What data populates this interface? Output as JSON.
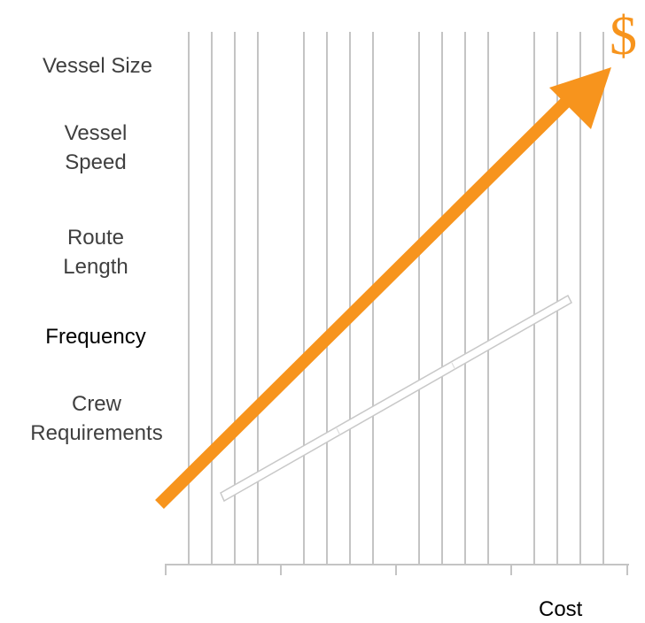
{
  "factors": [
    {
      "label": "Vessel Size"
    },
    {
      "label": "Vessel Speed"
    },
    {
      "label": "Route Length"
    },
    {
      "label": "Frequency"
    },
    {
      "label": "Crew Requirements"
    }
  ],
  "axis": {
    "label": "Cost"
  },
  "symbol": {
    "text": "$"
  },
  "colors": {
    "accent": "#f7941d",
    "grid": "#c4c4c4",
    "text": "#3f3f3f"
  }
}
